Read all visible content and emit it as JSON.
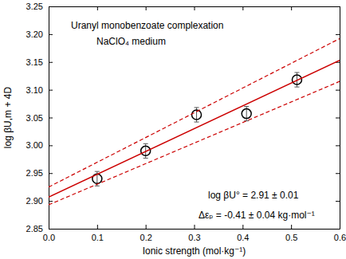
{
  "chart_data": {
    "type": "scatter",
    "x_label": "Ionic strength (mol·kg⁻¹)",
    "y_label": "log βU,m + 4D",
    "annotations": [
      "Uranyl monobenzoate complexation",
      "NaClO₄ medium",
      "log βU° = 2.91 ± 0.01",
      "Δεₚ = -0.41 ± 0.04 kg·mol⁻¹"
    ],
    "xlim": [
      0,
      0.6
    ],
    "xticks": [
      {
        "value": 0,
        "label": "0.0"
      },
      0.1,
      0.2,
      0.3,
      0.4,
      0.5,
      0.6
    ],
    "ylim": [
      2.85,
      3.25
    ],
    "yticks": [
      2.85,
      {
        "value": 2.9,
        "label": "2.90"
      },
      2.95,
      {
        "value": 3.0,
        "label": "3.00"
      },
      3.05,
      {
        "value": 3.1,
        "label": "3.10"
      },
      3.15,
      {
        "value": 3.2,
        "label": "3.20"
      },
      3.25
    ],
    "series": [
      {
        "type": "scatter",
        "marker": "circle",
        "color": "#000000",
        "x": [
          0.1,
          0.2,
          0.305,
          0.408,
          0.512
        ],
        "values": [
          2.94,
          2.99,
          3.055,
          3.057,
          3.118
        ],
        "errors": [
          0.013,
          0.013,
          0.013,
          0.013,
          0.013
        ]
      },
      {
        "type": "line",
        "line_style": "solid",
        "color": "#cc0000",
        "x": [
          0,
          0.6
        ],
        "values": [
          2.907,
          3.153
        ]
      },
      {
        "type": "line",
        "line_style": "dashed",
        "color": "#cc0000",
        "x": [
          0,
          0.6
        ],
        "values": [
          2.925,
          3.192
        ]
      },
      {
        "type": "line",
        "line_style": "dashed",
        "color": "#cc0000",
        "x": [
          0,
          0.6
        ],
        "values": [
          2.893,
          3.115
        ]
      }
    ]
  }
}
